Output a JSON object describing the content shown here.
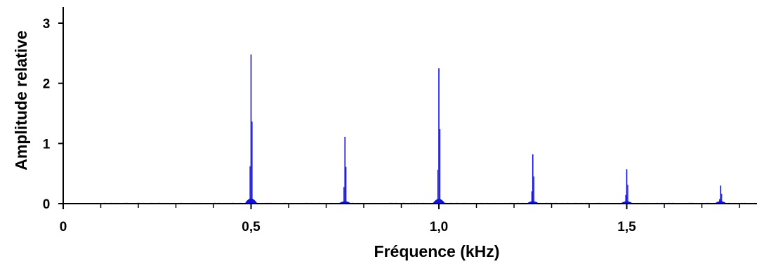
{
  "chart_data": {
    "type": "line",
    "title": "",
    "xlabel": "Fréquence (kHz)",
    "ylabel": "Amplitude relative",
    "xlim": [
      0,
      1.85
    ],
    "ylim": [
      0,
      3.3
    ],
    "x_ticks": [
      {
        "value": 0,
        "label": "0"
      },
      {
        "value": 0.5,
        "label": "0,5"
      },
      {
        "value": 1.0,
        "label": "1,0"
      },
      {
        "value": 1.5,
        "label": "1,5"
      }
    ],
    "x_minor_step": 0.1,
    "y_ticks": [
      {
        "value": 0,
        "label": "0"
      },
      {
        "value": 1,
        "label": "1"
      },
      {
        "value": 2,
        "label": "2"
      },
      {
        "value": 3,
        "label": "3"
      }
    ],
    "grid": false,
    "line_color": "#1010e0",
    "baseline_noise": 0.015,
    "peaks": [
      {
        "x": 0.5,
        "y": 2.48
      },
      {
        "x": 0.75,
        "y": 1.11
      },
      {
        "x": 1.0,
        "y": 2.25
      },
      {
        "x": 1.25,
        "y": 0.82
      },
      {
        "x": 1.5,
        "y": 0.57
      },
      {
        "x": 1.75,
        "y": 0.3
      }
    ]
  }
}
